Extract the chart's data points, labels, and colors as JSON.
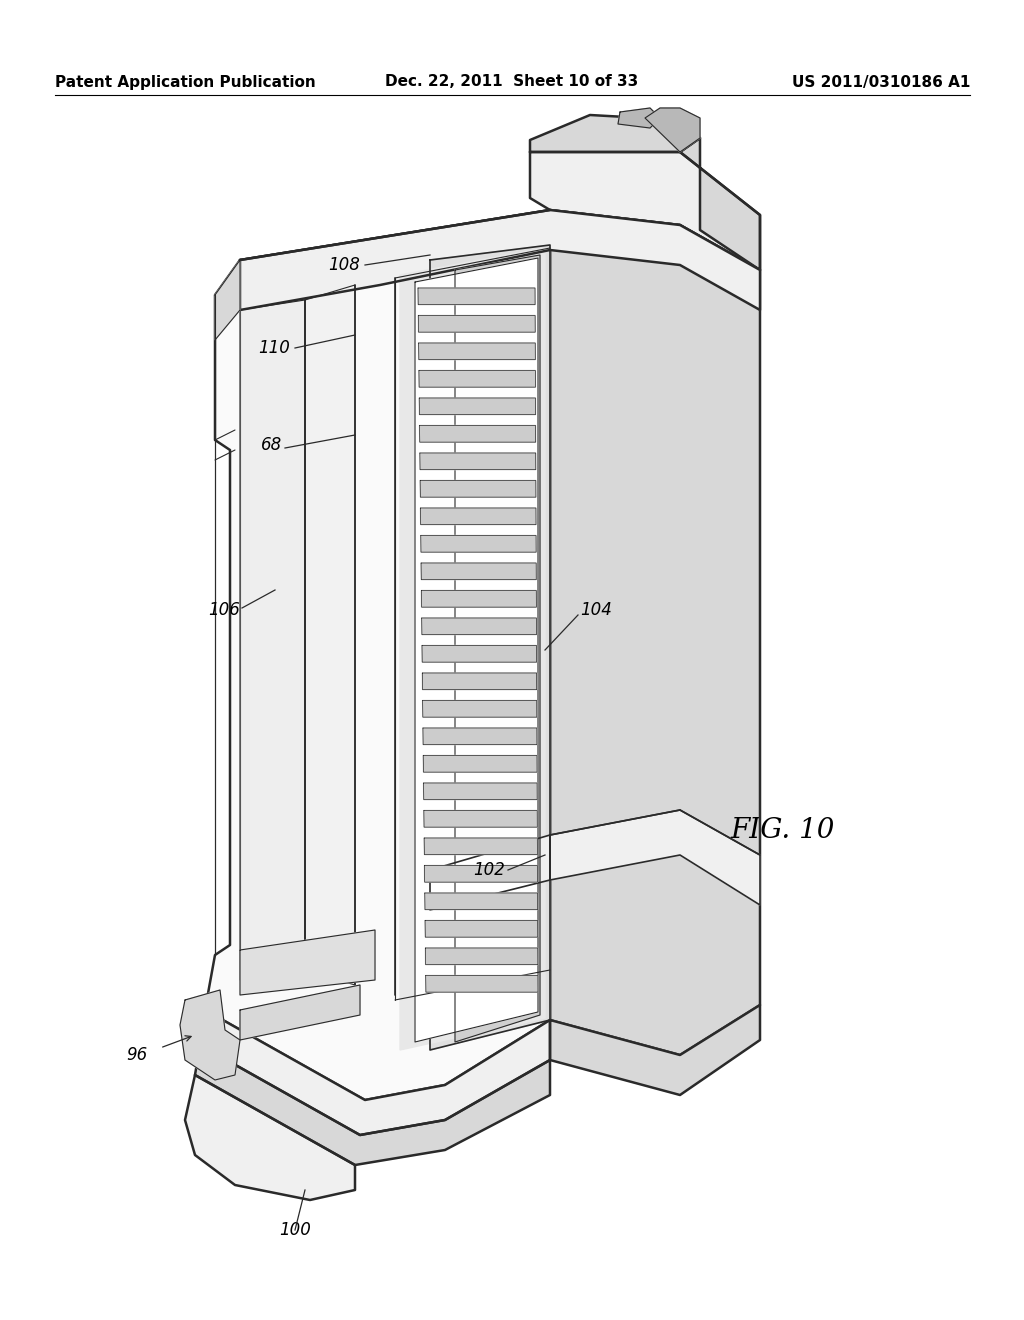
{
  "header_left": "Patent Application Publication",
  "header_center": "Dec. 22, 2011  Sheet 10 of 33",
  "header_right": "US 2011/0310186 A1",
  "fig_label": "FIG. 10",
  "bg_color": "#ffffff",
  "line_color": "#2a2a2a",
  "header_fontsize": 11,
  "label_fontsize": 12,
  "fig_label_fontsize": 20,
  "lw_main": 1.8,
  "lw_med": 1.2,
  "lw_thin": 0.8,
  "gray_light": "#f0f0f0",
  "gray_mid": "#d8d8d8",
  "gray_dark": "#b8b8b8",
  "white": "#ffffff"
}
